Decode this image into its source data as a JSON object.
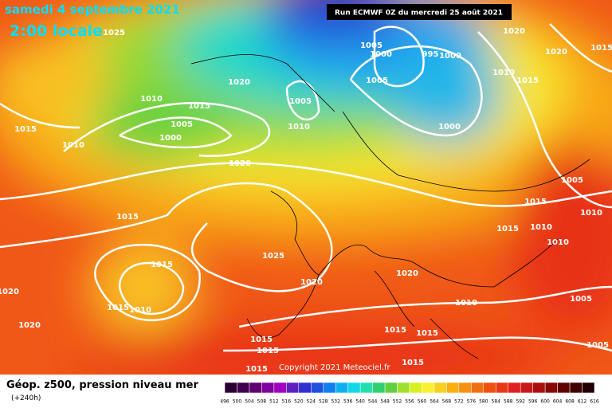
{
  "header": {
    "title": "samedi 4 septembre 2021",
    "time": "2:00 locale",
    "run": "Run ECMWF 0Z du mercredi 25 août 2021"
  },
  "copyright": "Copyright 2021 Meteociel.fr",
  "footer": {
    "title": "Géop. z500, pression niveau mer",
    "subtitle": "(+240h)"
  },
  "isobar_labels": [
    "1025",
    "1005",
    "1000",
    "995",
    "1000",
    "1020",
    "1015",
    "1020",
    "1010",
    "1015",
    "1005",
    "1020",
    "1005",
    "1010",
    "1015",
    "1005",
    "1000",
    "1010",
    "1000",
    "1015",
    "1010",
    "1020",
    "1005",
    "1015",
    "1010",
    "1015",
    "1015",
    "1010",
    "1010",
    "1025",
    "1015",
    "1020",
    "1020",
    "1020",
    "1015",
    "1010",
    "1010",
    "1005",
    "1020",
    "1015",
    "1015",
    "1015",
    "1015",
    "1005",
    "1015",
    "1015"
  ],
  "colorbar": {
    "labels": [
      "496",
      "500",
      "504",
      "508",
      "512",
      "516",
      "520",
      "524",
      "528",
      "532",
      "536",
      "540",
      "544",
      "548",
      "552",
      "556",
      "560",
      "564",
      "568",
      "572",
      "576",
      "580",
      "584",
      "588",
      "592",
      "596",
      "600",
      "604",
      "608",
      "612",
      "616"
    ],
    "colors": [
      "#2a0030",
      "#400050",
      "#600070",
      "#8000a0",
      "#a000c0",
      "#6020c0",
      "#3030d0",
      "#2050e0",
      "#1080f0",
      "#10b0f0",
      "#10d8e8",
      "#20e0b0",
      "#30d070",
      "#60d040",
      "#a0e030",
      "#d8f020",
      "#f8f030",
      "#f8d020",
      "#f8b010",
      "#f89010",
      "#f07010",
      "#f05010",
      "#e83818",
      "#e02020",
      "#c81818",
      "#a81010",
      "#880808",
      "#600000",
      "#400000",
      "#200000"
    ]
  }
}
